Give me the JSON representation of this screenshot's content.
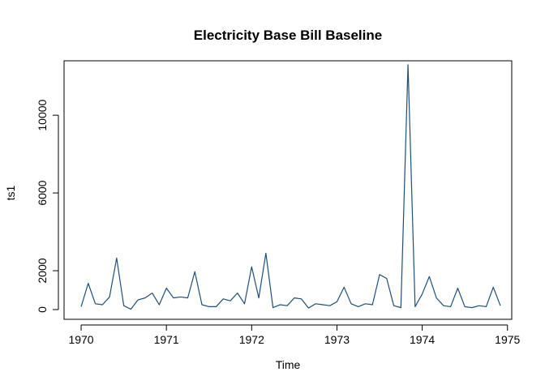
{
  "chart_data": {
    "type": "line",
    "title": "Electricity Base Bill Baseline",
    "xlabel": "Time",
    "ylabel": "ts1",
    "xlim": [
      1969.8,
      1975.05
    ],
    "ylim": [
      -500,
      12800
    ],
    "x_ticks": [
      1970,
      1971,
      1972,
      1973,
      1974,
      1975
    ],
    "x_tick_labels": [
      "1970",
      "1971",
      "1972",
      "1973",
      "1974",
      "1975"
    ],
    "y_ticks": [
      0,
      2000,
      6000,
      10000
    ],
    "y_tick_labels": [
      "0",
      "2000",
      "6000",
      "10000"
    ],
    "grid": false,
    "legend": "none",
    "line_color": "#1f4e79",
    "frequency": 12,
    "start": 1970,
    "series": [
      {
        "values": [
          150,
          1350,
          300,
          250,
          650,
          2650,
          200,
          20,
          500,
          600,
          850,
          250,
          1100,
          600,
          650,
          600,
          1950,
          250,
          150,
          150,
          550,
          450,
          850,
          300,
          2200,
          600,
          2900,
          100,
          250,
          200,
          600,
          550,
          80,
          300,
          250,
          200,
          400,
          1150,
          300,
          150,
          300,
          250,
          1800,
          1600,
          200,
          100,
          12600,
          150,
          800,
          1700,
          600,
          200,
          150,
          1100,
          150,
          100,
          200,
          150,
          1150,
          200
        ]
      }
    ]
  }
}
